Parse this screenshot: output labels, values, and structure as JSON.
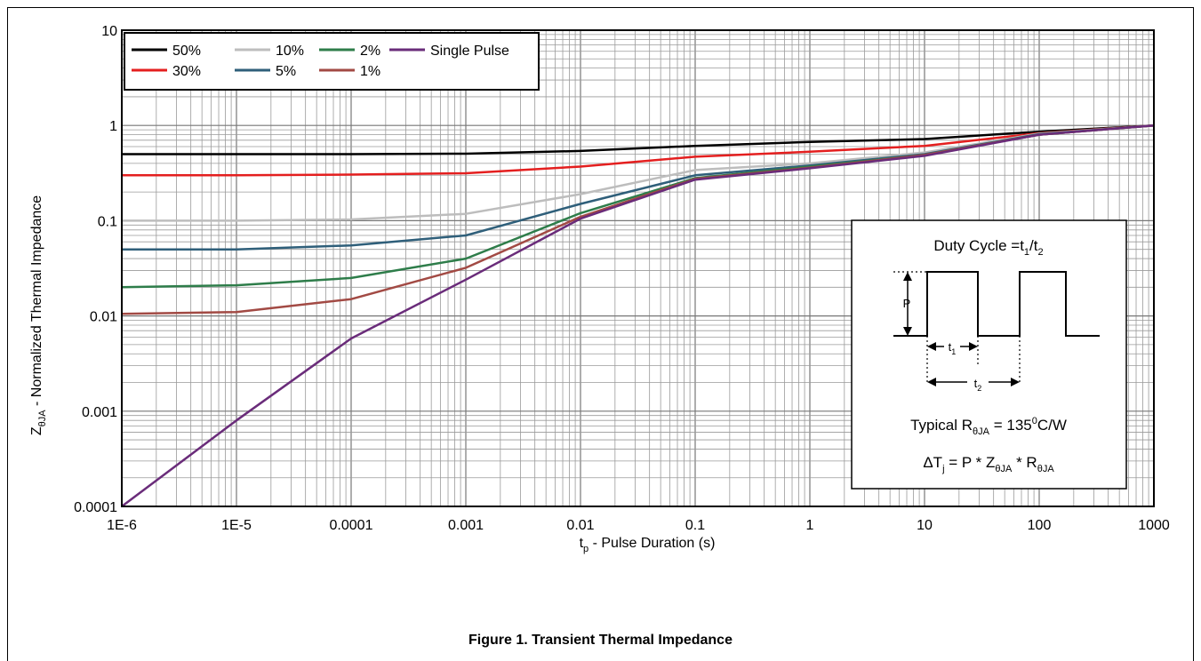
{
  "chart_data": {
    "type": "line",
    "x_scale": "log",
    "y_scale": "log",
    "xlim": [
      1e-06,
      1000
    ],
    "ylim": [
      0.0001,
      10
    ],
    "grid": true,
    "legend_position": "top-left",
    "x_tick_labels": [
      "1E-6",
      "1E-5",
      "0.0001",
      "0.001",
      "0.01",
      "0.1",
      "1",
      "10",
      "100",
      "1000"
    ],
    "y_tick_labels": [
      "0.0001",
      "0.001",
      "0.01",
      "0.1",
      "1",
      "10"
    ],
    "xlabel": {
      "main": "t",
      "sub": "p",
      "rest": " - Pulse Duration (s)"
    },
    "ylabel": {
      "main": "Z",
      "sub": "θJA",
      "rest": " - Normalized Thermal Impedance"
    },
    "series": [
      {
        "name": "50%",
        "color": "#000000",
        "points": [
          [
            1e-06,
            0.5
          ],
          [
            1e-05,
            0.5
          ],
          [
            0.0001,
            0.5
          ],
          [
            0.001,
            0.505
          ],
          [
            0.01,
            0.54
          ],
          [
            0.1,
            0.61
          ],
          [
            1,
            0.67
          ],
          [
            10,
            0.72
          ],
          [
            100,
            0.86
          ],
          [
            1000,
            1.0
          ]
        ]
      },
      {
        "name": "30%",
        "color": "#e41f1f",
        "points": [
          [
            1e-06,
            0.3
          ],
          [
            1e-05,
            0.3
          ],
          [
            0.0001,
            0.305
          ],
          [
            0.001,
            0.315
          ],
          [
            0.01,
            0.37
          ],
          [
            0.1,
            0.47
          ],
          [
            1,
            0.53
          ],
          [
            10,
            0.61
          ],
          [
            100,
            0.83
          ],
          [
            1000,
            1.0
          ]
        ]
      },
      {
        "name": "10%",
        "color": "#bdbdbd",
        "points": [
          [
            1e-06,
            0.1
          ],
          [
            1e-05,
            0.1
          ],
          [
            0.0001,
            0.103
          ],
          [
            0.001,
            0.118
          ],
          [
            0.01,
            0.19
          ],
          [
            0.1,
            0.34
          ],
          [
            1,
            0.4
          ],
          [
            10,
            0.52
          ],
          [
            100,
            0.82
          ],
          [
            1000,
            1.0
          ]
        ]
      },
      {
        "name": "5%",
        "color": "#2f5f7a",
        "points": [
          [
            1e-06,
            0.05
          ],
          [
            1e-05,
            0.05
          ],
          [
            0.0001,
            0.055
          ],
          [
            0.001,
            0.07
          ],
          [
            0.01,
            0.15
          ],
          [
            0.1,
            0.3
          ],
          [
            1,
            0.38
          ],
          [
            10,
            0.5
          ],
          [
            100,
            0.81
          ],
          [
            1000,
            1.0
          ]
        ]
      },
      {
        "name": "2%",
        "color": "#2e7d4a",
        "points": [
          [
            1e-06,
            0.02
          ],
          [
            1e-05,
            0.021
          ],
          [
            0.0001,
            0.025
          ],
          [
            0.001,
            0.04
          ],
          [
            0.01,
            0.12
          ],
          [
            0.1,
            0.28
          ],
          [
            1,
            0.37
          ],
          [
            10,
            0.49
          ],
          [
            100,
            0.8
          ],
          [
            1000,
            1.0
          ]
        ]
      },
      {
        "name": "1%",
        "color": "#a24a44",
        "points": [
          [
            1e-06,
            0.0105
          ],
          [
            1e-05,
            0.011
          ],
          [
            0.0001,
            0.015
          ],
          [
            0.001,
            0.032
          ],
          [
            0.01,
            0.11
          ],
          [
            0.1,
            0.275
          ],
          [
            1,
            0.36
          ],
          [
            10,
            0.49
          ],
          [
            100,
            0.8
          ],
          [
            1000,
            1.0
          ]
        ]
      },
      {
        "name": "Single Pulse",
        "color": "#6a2c7a",
        "points": [
          [
            1e-06,
            0.0001
          ],
          [
            1e-05,
            0.0008
          ],
          [
            0.0001,
            0.0058
          ],
          [
            0.001,
            0.024
          ],
          [
            0.01,
            0.105
          ],
          [
            0.1,
            0.27
          ],
          [
            1,
            0.355
          ],
          [
            10,
            0.48
          ],
          [
            100,
            0.8
          ],
          [
            1000,
            1.0
          ]
        ]
      }
    ],
    "legend_order": [
      "50%",
      "10%",
      "2%",
      "Single Pulse",
      "30%",
      "5%",
      "1%"
    ],
    "inset": {
      "title": {
        "main": "Duty Cycle =t",
        "sub1": "1",
        "slash": "/t",
        "sub2": "2"
      },
      "p_label": "P",
      "t1": {
        "main": "t",
        "sub": "1"
      },
      "t2": {
        "main": "t",
        "sub": "2"
      },
      "typical": {
        "a": "Typical R",
        "sub": "θJA",
        "b": " = 135",
        "sup": "0",
        "c": "C/W"
      },
      "formula": {
        "a": "ΔT",
        "sub1": "j",
        "b": " = P * Z",
        "sub2": "θJA",
        "c": " * R",
        "sub3": "θJA"
      }
    }
  },
  "caption": "Figure 1. Transient Thermal Impedance"
}
